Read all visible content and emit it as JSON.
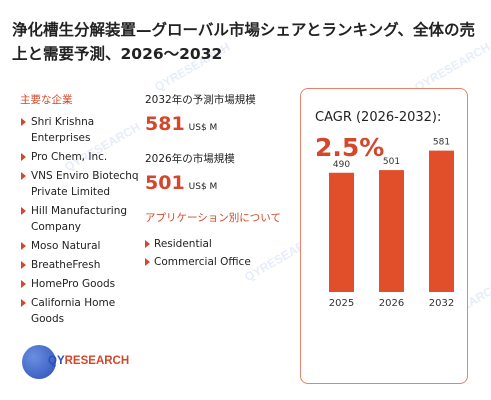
{
  "title": "浄化槽生分解装置—グローバル市場シェアとランキング、全体の売上と需要予測、2026～2032",
  "companies": {
    "label": "主要な企業",
    "items": [
      "Shri Krishna Enterprises",
      "Pro Chem, Inc.",
      "VNS Enviro Biotechq Private Limited",
      "Hill Manufacturing Company",
      "Moso Natural",
      "BreatheFresh",
      "HomePro Goods",
      "California Home Goods"
    ]
  },
  "forecast": {
    "label": "2032年の予測市場規模",
    "value": "581",
    "unit": "US$ M"
  },
  "current": {
    "label": "2026年の市場規模",
    "value": "501",
    "unit": "US$ M"
  },
  "applications": {
    "label": "アプリケーション別について",
    "items": [
      "Residential",
      "Commercial Office"
    ]
  },
  "cagr": {
    "label": "CAGR (2026-2032):",
    "value": "2.5%"
  },
  "logo": {
    "prefix": "QY",
    "suffix": "RESEARCH",
    "watermark": "QYRESEARCH"
  },
  "colors": {
    "accent": "#d4472a",
    "bar": "#e04e2a",
    "card_border": "#e8826c",
    "brand_blue": "#2b4fb8"
  },
  "chart_data": {
    "type": "bar",
    "categories": [
      "2025",
      "2026",
      "2032"
    ],
    "values": [
      490,
      501,
      581
    ],
    "ylim": [
      0,
      600
    ],
    "unit": "US$ M",
    "grid": false
  }
}
